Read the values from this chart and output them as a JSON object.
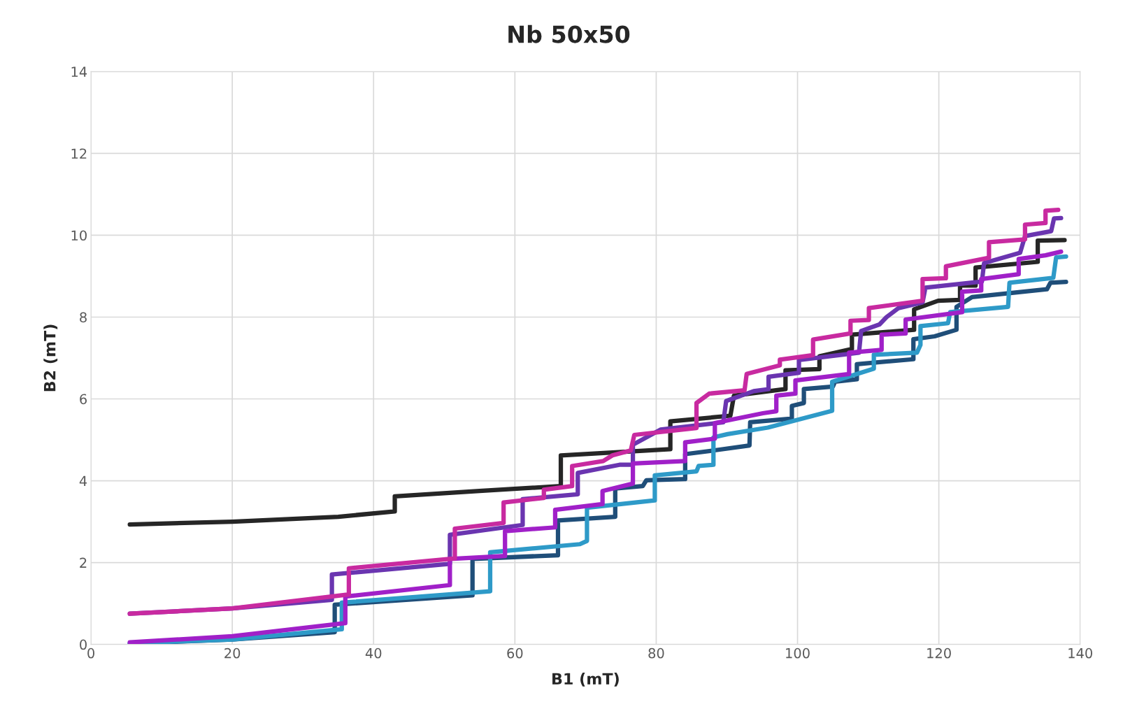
{
  "chart_data": {
    "type": "line",
    "title": "Nb 50x50",
    "xlabel": "B1 (mT)",
    "ylabel": "B2 (mT)",
    "xlim": [
      0,
      140
    ],
    "xticks": [
      0,
      20,
      40,
      60,
      80,
      100,
      120,
      140
    ],
    "ylim": [
      0,
      14
    ],
    "yticks": [
      0,
      2,
      4,
      6,
      8,
      10,
      12,
      14
    ],
    "grid": true,
    "legend": false,
    "series": [
      {
        "color": "#262626",
        "x": [
          5.5,
          20,
          35,
          43,
          43,
          55,
          66.5,
          66.5,
          82,
          82,
          90.5,
          91,
          98.3,
          98.3,
          103.1,
          103.1,
          107.7,
          107.7,
          116.5,
          116.5,
          119.9,
          123,
          123,
          125.2,
          125.2,
          134,
          134,
          137.8
        ],
        "values": [
          2.93,
          3.0,
          3.12,
          3.25,
          3.62,
          3.75,
          3.87,
          4.62,
          4.77,
          5.45,
          5.59,
          6.08,
          6.24,
          6.7,
          6.73,
          7.04,
          7.22,
          7.57,
          7.69,
          8.19,
          8.4,
          8.42,
          8.77,
          8.77,
          9.21,
          9.35,
          9.87,
          9.88
        ]
      },
      {
        "color": "#1f4e79",
        "x": [
          5.5,
          20,
          34.5,
          34.5,
          54,
          54,
          66.1,
          66.1,
          74.2,
          74.2,
          78.1,
          78.6,
          84.1,
          84.1,
          88.1,
          93.2,
          93.3,
          99.2,
          99.2,
          100.9,
          100.9,
          105,
          105.3,
          108.4,
          108.4,
          116.4,
          116.4,
          119.4,
          122.5,
          122.5,
          124.7,
          135.3,
          135.8,
          138
        ],
        "values": [
          0.02,
          0.12,
          0.3,
          0.97,
          1.2,
          2.09,
          2.18,
          3.03,
          3.12,
          3.81,
          3.87,
          4.01,
          4.04,
          4.65,
          4.74,
          4.86,
          5.43,
          5.52,
          5.83,
          5.9,
          6.24,
          6.3,
          6.42,
          6.48,
          6.85,
          6.97,
          7.46,
          7.53,
          7.69,
          8.25,
          8.49,
          8.68,
          8.84,
          8.86
        ]
      },
      {
        "color": "#2e9ac8",
        "x": [
          5.5,
          20,
          35.5,
          35.5,
          56.5,
          56.5,
          69.2,
          70.2,
          70.2,
          79.8,
          79.8,
          85.7,
          86,
          88.1,
          88.1,
          90.1,
          95.8,
          104.9,
          104.9,
          107.5,
          110.8,
          110.8,
          116.9,
          117.4,
          117.4,
          121.3,
          121.6,
          129.8,
          130,
          136.2,
          136.6,
          138
        ],
        "values": [
          0.03,
          0.12,
          0.37,
          1.02,
          1.3,
          2.25,
          2.45,
          2.53,
          3.34,
          3.52,
          4.13,
          4.23,
          4.36,
          4.39,
          5.06,
          5.14,
          5.3,
          5.71,
          6.42,
          6.56,
          6.74,
          7.08,
          7.13,
          7.32,
          7.78,
          7.85,
          8.12,
          8.25,
          8.84,
          8.96,
          9.46,
          9.48
        ]
      },
      {
        "color": "#6a35b0",
        "x": [
          5.5,
          20,
          34.1,
          34.1,
          50.8,
          50.8,
          61.1,
          61.1,
          68.9,
          68.9,
          74.8,
          76.7,
          76.7,
          80.6,
          89.5,
          89.9,
          93.8,
          95.9,
          95.9,
          100.2,
          100.2,
          108.7,
          109,
          111.6,
          112.6,
          114.3,
          117.7,
          118.1,
          126.1,
          126.4,
          131.5,
          132.2,
          135.9,
          136.3,
          137.3
        ],
        "values": [
          0.75,
          0.88,
          1.09,
          1.71,
          1.97,
          2.68,
          2.92,
          3.55,
          3.67,
          4.19,
          4.39,
          4.39,
          4.88,
          5.25,
          5.43,
          5.95,
          6.19,
          6.24,
          6.54,
          6.64,
          6.95,
          7.13,
          7.66,
          7.82,
          8.0,
          8.22,
          8.36,
          8.72,
          8.87,
          9.32,
          9.57,
          9.98,
          10.1,
          10.41,
          10.42
        ]
      },
      {
        "color": "#a020c8",
        "x": [
          5.5,
          20,
          36,
          36,
          50.8,
          50.8,
          58.6,
          58.6,
          65.7,
          65.7,
          72.4,
          72.4,
          76.7,
          76.7,
          84.1,
          84.1,
          88.3,
          88.3,
          95.1,
          97,
          97,
          99.7,
          99.7,
          107.3,
          107.3,
          111.9,
          111.9,
          115.3,
          115.3,
          123.3,
          123.3,
          126,
          126,
          131.3,
          131.3,
          135.1,
          137.3
        ],
        "values": [
          0.05,
          0.2,
          0.52,
          1.17,
          1.45,
          2.09,
          2.16,
          2.77,
          2.86,
          3.29,
          3.43,
          3.75,
          3.93,
          4.42,
          4.48,
          4.94,
          5.03,
          5.41,
          5.65,
          5.7,
          6.08,
          6.13,
          6.45,
          6.61,
          7.13,
          7.2,
          7.57,
          7.6,
          7.94,
          8.12,
          8.62,
          8.65,
          8.93,
          9.05,
          9.42,
          9.51,
          9.6
        ]
      },
      {
        "color": "#c82aa0",
        "x": [
          5.5,
          20,
          36.5,
          36.5,
          51.5,
          51.5,
          58.4,
          58.4,
          64.1,
          64.1,
          68.1,
          68.1,
          72.5,
          73.8,
          76.4,
          76.9,
          85.7,
          85.7,
          87.5,
          92.5,
          92.8,
          97.5,
          97.5,
          102.2,
          102.2,
          107.5,
          107.5,
          110.1,
          110.1,
          117.7,
          117.7,
          121,
          121,
          127.1,
          127.1,
          132.2,
          132.2,
          135.1,
          135.1,
          136.9
        ],
        "values": [
          0.75,
          0.88,
          1.22,
          1.86,
          2.1,
          2.83,
          2.97,
          3.47,
          3.58,
          3.78,
          3.87,
          4.36,
          4.48,
          4.62,
          4.74,
          5.12,
          5.29,
          5.9,
          6.13,
          6.21,
          6.61,
          6.82,
          6.96,
          7.07,
          7.45,
          7.6,
          7.91,
          7.93,
          8.22,
          8.4,
          8.93,
          8.95,
          9.24,
          9.45,
          9.83,
          9.9,
          10.26,
          10.3,
          10.6,
          10.62
        ]
      }
    ]
  }
}
